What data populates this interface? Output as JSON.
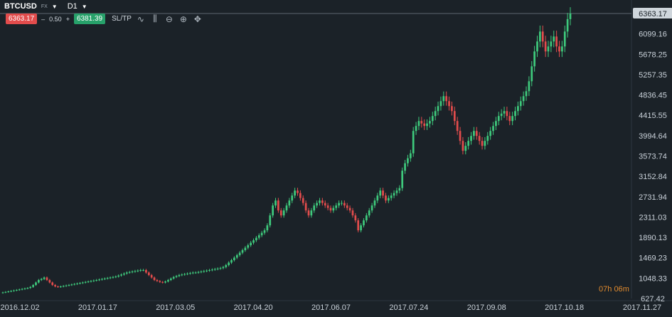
{
  "header": {
    "symbol": "BTCUSD",
    "market": "FX",
    "timeframe": "D1",
    "sell_price": "6363.17",
    "spread_minus": "–",
    "spread": "0.50",
    "spread_plus": "+",
    "buy_price": "6381.39",
    "sltp_label": "SL/TP"
  },
  "toolbar": {
    "icons": [
      "chart-type-icon",
      "indicators-icon",
      "zoom-out-icon",
      "zoom-in-icon",
      "crosshair-icon"
    ]
  },
  "countdown": {
    "hours": "07",
    "h_unit": "h",
    "minutes": "06",
    "m_unit": "m"
  },
  "colors": {
    "background": "#1b2228",
    "up": "#3ec97c",
    "down": "#e24c4c",
    "price_badge": "#cfd6dc",
    "countdown": "#e08a2e"
  },
  "chart_data": {
    "type": "candlestick",
    "xlabel": "",
    "ylabel": "",
    "ylim": [
      627.42,
      6363.17
    ],
    "grid": false,
    "y_ticks": [
      "6363.17",
      "6099.16",
      "5678.25",
      "5257.35",
      "4836.45",
      "4415.55",
      "3994.64",
      "3573.74",
      "3152.84",
      "2731.94",
      "2311.03",
      "1890.13",
      "1469.23",
      "1048.33",
      "627.42"
    ],
    "x_ticks": [
      "2016.12.02",
      "2017.01.17",
      "2017.03.05",
      "2017.04.20",
      "2017.06.07",
      "2017.07.24",
      "2017.09.08",
      "2017.10.18",
      "2017.11.27"
    ],
    "last_price": "6363.17",
    "series": [
      {
        "name": "",
        "close": [
          750,
          760,
          770,
          780,
          790,
          800,
          810,
          820,
          830,
          840,
          860,
          900,
          950,
          1000,
          1020,
          1050,
          1000,
          950,
          900,
          870,
          860,
          870,
          880,
          890,
          900,
          910,
          920,
          930,
          940,
          950,
          960,
          970,
          980,
          990,
          1000,
          1010,
          1020,
          1030,
          1040,
          1050,
          1060,
          1070,
          1090,
          1110,
          1130,
          1150,
          1160,
          1170,
          1180,
          1190,
          1200,
          1200,
          1150,
          1100,
          1050,
          1000,
          980,
          960,
          950,
          970,
          1000,
          1030,
          1060,
          1080,
          1100,
          1110,
          1120,
          1130,
          1140,
          1150,
          1150,
          1160,
          1170,
          1180,
          1190,
          1200,
          1210,
          1220,
          1230,
          1240,
          1260,
          1300,
          1350,
          1400,
          1450,
          1500,
          1550,
          1600,
          1650,
          1700,
          1750,
          1800,
          1850,
          1900,
          1950,
          2000,
          2100,
          2300,
          2500,
          2600,
          2400,
          2300,
          2400,
          2500,
          2600,
          2700,
          2800,
          2750,
          2650,
          2550,
          2400,
          2300,
          2400,
          2500,
          2550,
          2600,
          2550,
          2500,
          2450,
          2400,
          2450,
          2500,
          2550,
          2550,
          2500,
          2450,
          2400,
          2300,
          2200,
          2000,
          2100,
          2200,
          2300,
          2400,
          2500,
          2600,
          2700,
          2800,
          2700,
          2600,
          2650,
          2700,
          2750,
          2800,
          2850,
          3200,
          3350,
          3450,
          3550,
          4000,
          4100,
          4200,
          4150,
          4100,
          4150,
          4200,
          4300,
          4400,
          4500,
          4600,
          4700,
          4600,
          4500,
          4400,
          4200,
          4000,
          3800,
          3600,
          3700,
          3800,
          3900,
          4000,
          3900,
          3800,
          3700,
          3800,
          3900,
          4000,
          4100,
          4200,
          4300,
          4350,
          4400,
          4300,
          4200,
          4300,
          4400,
          4500,
          4600,
          4700,
          4800,
          5000,
          5300,
          5600,
          5800,
          6000,
          5800,
          5600,
          5700,
          5800,
          5900,
          5700,
          5600,
          5700,
          6000,
          6250,
          6363.17
        ],
        "open": [
          740,
          750,
          760,
          770,
          780,
          790,
          800,
          810,
          820,
          830,
          840,
          860,
          900,
          950,
          1000,
          1020,
          1050,
          1000,
          950,
          900,
          870,
          860,
          870,
          880,
          890,
          900,
          910,
          920,
          930,
          940,
          950,
          960,
          970,
          980,
          990,
          1000,
          1010,
          1020,
          1030,
          1040,
          1050,
          1060,
          1070,
          1090,
          1110,
          1130,
          1150,
          1160,
          1170,
          1180,
          1190,
          1200,
          1200,
          1150,
          1100,
          1050,
          1000,
          980,
          960,
          950,
          970,
          1000,
          1030,
          1060,
          1080,
          1100,
          1110,
          1120,
          1130,
          1140,
          1150,
          1150,
          1160,
          1170,
          1180,
          1190,
          1200,
          1210,
          1220,
          1230,
          1240,
          1260,
          1300,
          1350,
          1400,
          1450,
          1500,
          1550,
          1600,
          1650,
          1700,
          1750,
          1800,
          1850,
          1900,
          1950,
          2000,
          2100,
          2300,
          2500,
          2600,
          2400,
          2300,
          2400,
          2500,
          2600,
          2700,
          2800,
          2750,
          2650,
          2550,
          2400,
          2300,
          2400,
          2500,
          2550,
          2600,
          2550,
          2500,
          2450,
          2400,
          2450,
          2500,
          2550,
          2550,
          2500,
          2450,
          2400,
          2300,
          2200,
          2000,
          2100,
          2200,
          2300,
          2400,
          2500,
          2600,
          2700,
          2800,
          2700,
          2600,
          2650,
          2700,
          2750,
          2800,
          2850,
          3200,
          3350,
          3450,
          3550,
          4000,
          4100,
          4200,
          4150,
          4100,
          4150,
          4200,
          4300,
          4400,
          4500,
          4600,
          4700,
          4600,
          4500,
          4400,
          4200,
          4000,
          3800,
          3600,
          3700,
          3800,
          3900,
          4000,
          3900,
          3800,
          3700,
          3800,
          3900,
          4000,
          4100,
          4200,
          4300,
          4350,
          4400,
          4300,
          4200,
          4300,
          4400,
          4500,
          4600,
          4700,
          4800,
          5000,
          5300,
          5600,
          5800,
          6000,
          5800,
          5600,
          5700,
          5800,
          5900,
          5700,
          5600,
          5700,
          6000,
          6250
        ]
      }
    ]
  }
}
